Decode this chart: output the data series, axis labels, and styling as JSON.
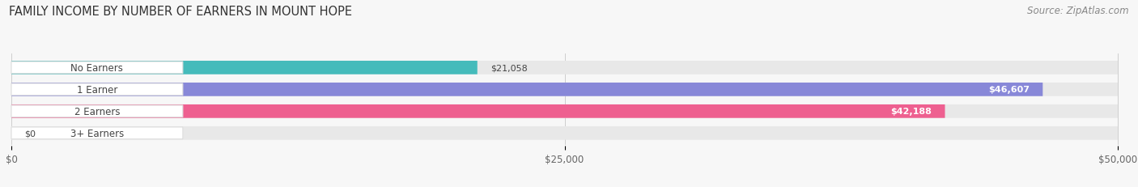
{
  "title": "FAMILY INCOME BY NUMBER OF EARNERS IN MOUNT HOPE",
  "source": "Source: ZipAtlas.com",
  "categories": [
    "No Earners",
    "1 Earner",
    "2 Earners",
    "3+ Earners"
  ],
  "values": [
    21058,
    46607,
    42188,
    0
  ],
  "value_labels": [
    "$21,058",
    "$46,607",
    "$42,188",
    "$0"
  ],
  "bar_colors": [
    "#45BBBB",
    "#8888D8",
    "#EE6090",
    "#F5C888"
  ],
  "bar_bg_color": "#E8E8E8",
  "max_value": 50000,
  "x_ticks": [
    0,
    25000,
    50000
  ],
  "x_tick_labels": [
    "$0",
    "$25,000",
    "$50,000"
  ],
  "background_color": "#F7F7F7",
  "title_fontsize": 10.5,
  "source_fontsize": 8.5,
  "label_fontsize": 8.5,
  "value_fontsize": 8,
  "bar_height": 0.62,
  "label_box_color": "#FFFFFF",
  "label_text_color": "#444444",
  "value_inside_color": "#FFFFFF",
  "value_outside_color": "#444444",
  "inside_threshold": 0.75
}
